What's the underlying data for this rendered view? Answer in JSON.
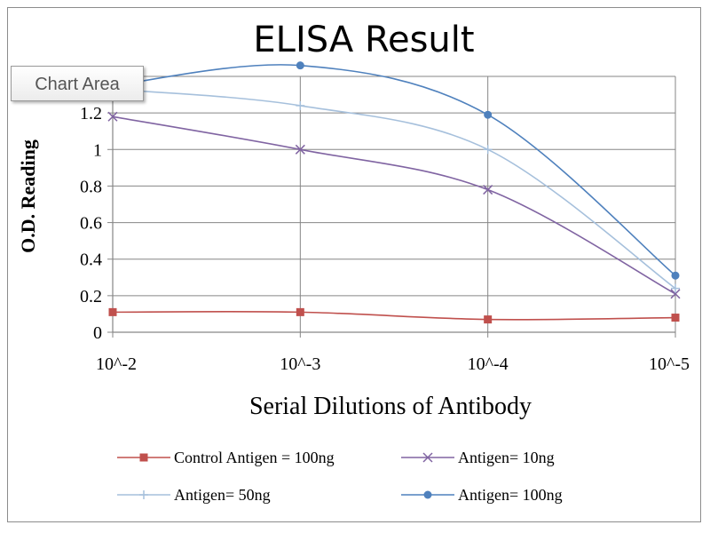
{
  "chart_data": {
    "type": "line",
    "title": "ELISA Result",
    "xlabel": "Serial  Dilutions  of Antibody",
    "ylabel": "O.D. Reading",
    "categories": [
      "10^-2",
      "10^-3",
      "10^-4",
      "10^-5"
    ],
    "ylim": [
      0,
      1.4
    ],
    "yticks": [
      0,
      0.2,
      0.4,
      0.6,
      0.8,
      1,
      1.2,
      1.4
    ],
    "ytick_labels": [
      "0",
      "0.2",
      "0.4",
      "0.6",
      "0.8",
      "1",
      "1.2",
      "1.4"
    ],
    "grid": true,
    "legend": "bottom",
    "series": [
      {
        "name": "Control Antigen = 100ng",
        "values": [
          0.11,
          0.11,
          0.07,
          0.08
        ],
        "color": "#c0504d",
        "marker": "square"
      },
      {
        "name": "Antigen= 10ng",
        "values": [
          1.18,
          1.0,
          0.78,
          0.21
        ],
        "color": "#8064a2",
        "marker": "x"
      },
      {
        "name": "Antigen= 50ng",
        "values": [
          1.33,
          1.24,
          1.0,
          0.24
        ],
        "color": "#a6c0dc",
        "marker": "plus"
      },
      {
        "name": "Antigen= 100ng",
        "values": [
          1.35,
          1.46,
          1.19,
          0.31
        ],
        "color": "#4f81bd",
        "marker": "circle"
      }
    ]
  },
  "ui": {
    "tooltip": "Chart Area"
  }
}
